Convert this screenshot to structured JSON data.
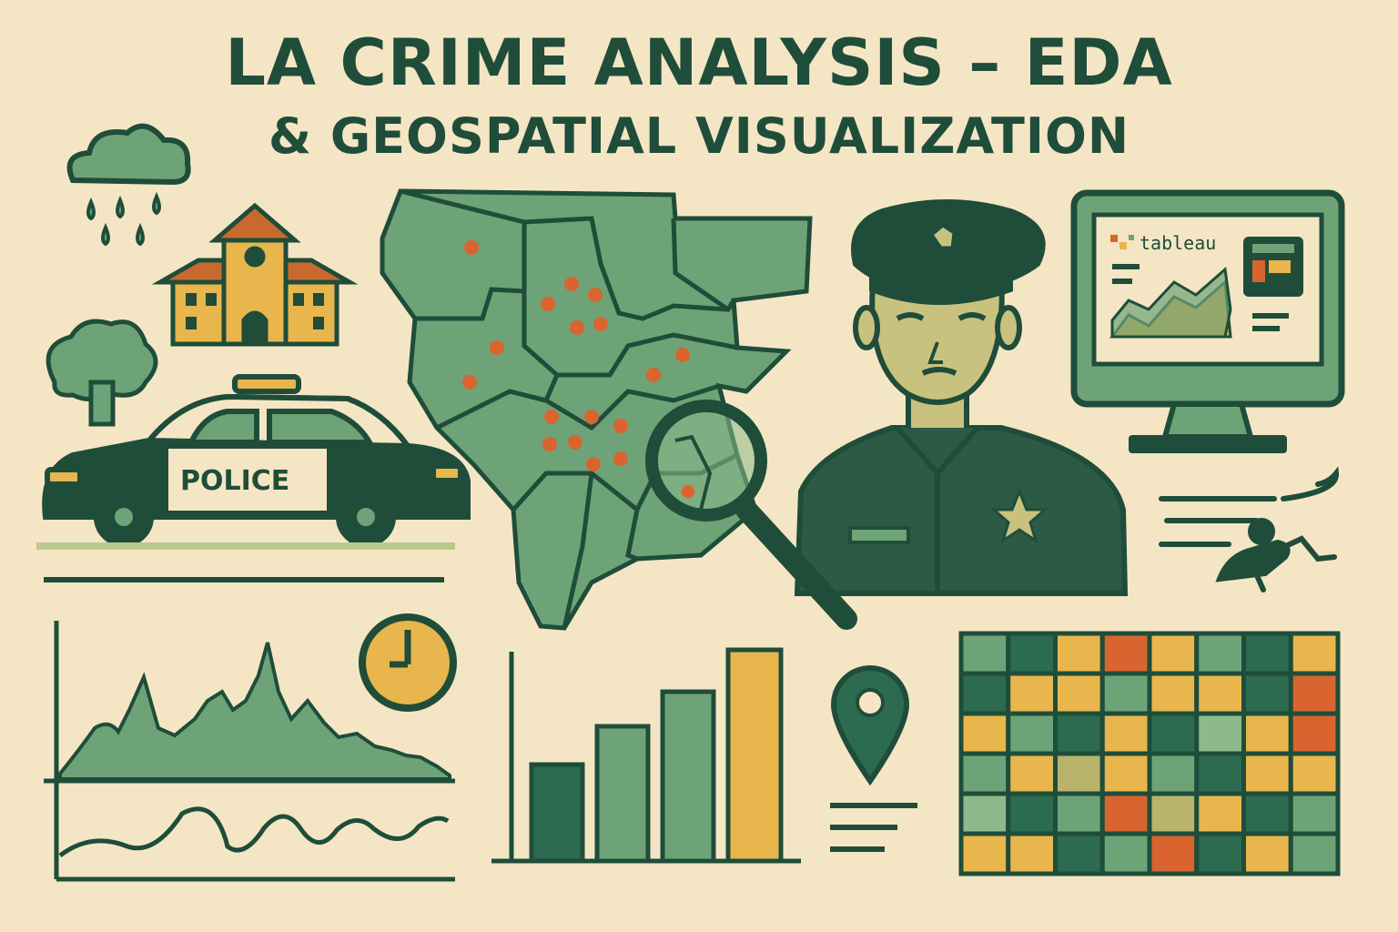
{
  "header": {
    "title_line1": "LA CRIME ANALYSIS – EDA",
    "title_line2": "& GEOSPATIAL VISUALIZATION"
  },
  "police_car": {
    "label": "POLICE"
  },
  "monitor": {
    "brand": "tableau"
  },
  "colors": {
    "background": "#f4e6c4",
    "dark_green": "#1f4d3a",
    "mid_green": "#6ea377",
    "light_green": "#8db98c",
    "gold": "#e8b64c",
    "orange": "#d9642f",
    "olive": "#b9b36b"
  },
  "icons": [
    "rain-cloud-icon",
    "school-building-icon",
    "tree-icon",
    "police-car-icon",
    "la-map-icon",
    "magnifying-glass-icon",
    "police-officer-icon",
    "monitor-icon",
    "running-figure-icon",
    "clock-icon",
    "location-pin-icon"
  ]
}
